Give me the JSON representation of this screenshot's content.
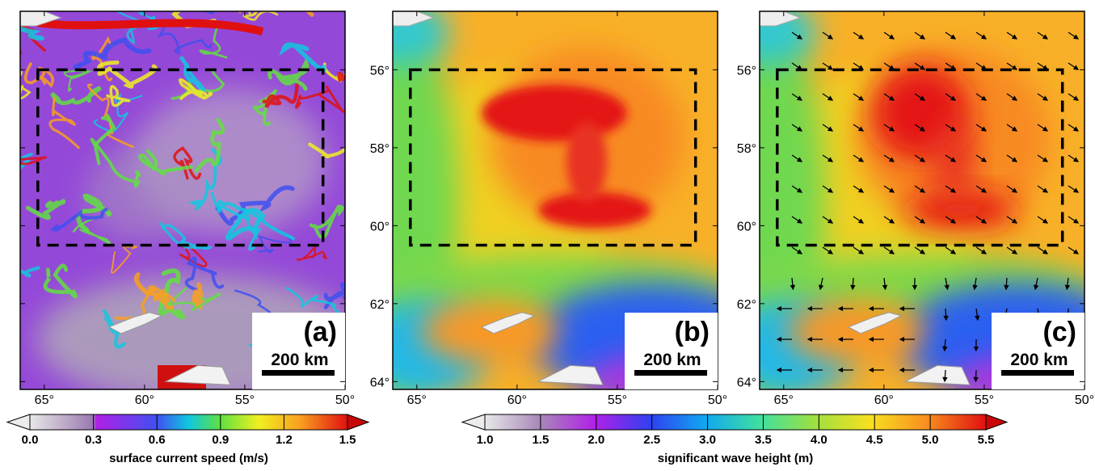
{
  "panels": [
    {
      "label": "(a)",
      "scale": "200 km"
    },
    {
      "label": "(b)",
      "scale": "200 km"
    },
    {
      "label": "(c)",
      "scale": "200 km"
    }
  ],
  "lonlim": [
    66.2,
    50
  ],
  "latlim": [
    54.5,
    64.2
  ],
  "lon_ticks": [
    {
      "value": 65,
      "label": "65°"
    },
    {
      "value": 60,
      "label": "60°"
    },
    {
      "value": 55,
      "label": "55°"
    },
    {
      "value": 50,
      "label": "50°"
    }
  ],
  "lat_ticks": [
    {
      "value": 56,
      "label": "56°"
    },
    {
      "value": 58,
      "label": "58°"
    },
    {
      "value": 60,
      "label": "60°"
    },
    {
      "value": 62,
      "label": "62°"
    },
    {
      "value": 64,
      "label": "64°"
    }
  ],
  "colorbars": [
    {
      "title": "surface current speed (m/s)",
      "ticks": [
        {
          "value": 0,
          "label": "0.0"
        },
        {
          "value": 0.3,
          "label": "0.3"
        },
        {
          "value": 0.6,
          "label": "0.6"
        },
        {
          "value": 0.9,
          "label": "0.9"
        },
        {
          "value": 1.2,
          "label": "1.2"
        },
        {
          "value": 1.5,
          "label": "1.5"
        }
      ]
    },
    {
      "title": "significant wave height (m)",
      "ticks": [
        {
          "value": 1,
          "label": "1.0"
        },
        {
          "value": 1.5,
          "label": "1.5"
        },
        {
          "value": 2,
          "label": "2.0"
        },
        {
          "value": 2.5,
          "label": "2.5"
        },
        {
          "value": 3,
          "label": "3.0"
        },
        {
          "value": 3.5,
          "label": "3.5"
        },
        {
          "value": 4,
          "label": "4.0"
        },
        {
          "value": 4.5,
          "label": "4.5"
        },
        {
          "value": 5,
          "label": "5.0"
        },
        {
          "value": 5.5,
          "label": "5.5"
        }
      ]
    }
  ]
}
